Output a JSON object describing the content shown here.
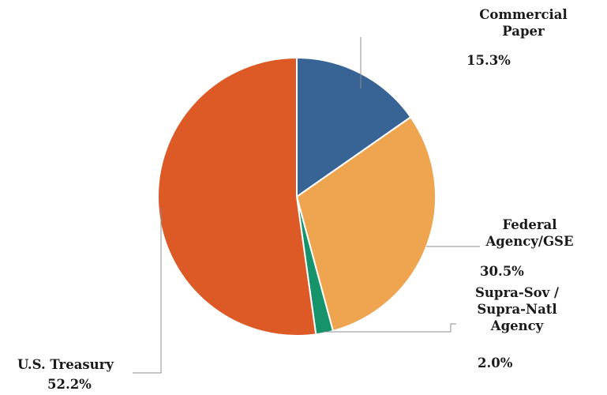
{
  "chart_data": {
    "type": "pie",
    "title": "",
    "start_angle_deg": 0,
    "direction": "clockwise",
    "slices": [
      {
        "label_lines": [
          "Commercial",
          "Paper"
        ],
        "pct_text": "15.3%",
        "value": 15.3,
        "color": "#386495"
      },
      {
        "label_lines": [
          "Federal",
          "Agency/GSE"
        ],
        "pct_text": "30.5%",
        "value": 30.5,
        "color": "#EFA54F"
      },
      {
        "label_lines": [
          "Supra-Sov /",
          "Supra-Natl",
          "Agency"
        ],
        "pct_text": "2.0%",
        "value": 2.0,
        "color": "#16936A"
      },
      {
        "label_lines": [
          "U.S. Treasury"
        ],
        "pct_text": "52.2%",
        "value": 52.2,
        "color": "#DD5A26"
      }
    ],
    "leader_line_color": "#8c8c8c"
  }
}
